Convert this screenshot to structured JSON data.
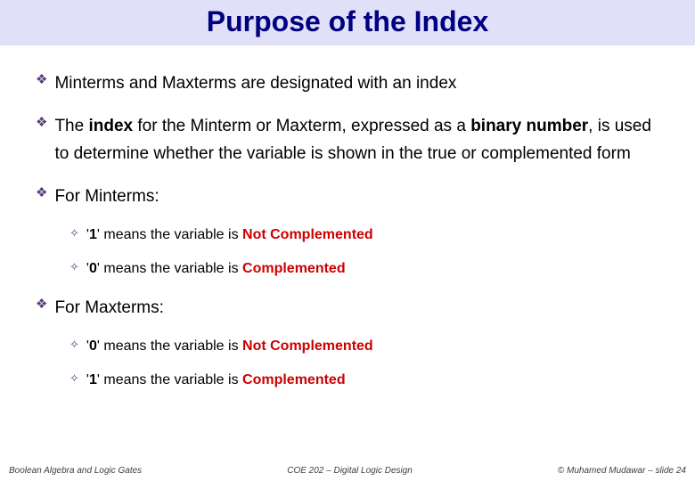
{
  "title": "Purpose of the Index",
  "bullets": {
    "b1": "Minterms and Maxterms are designated with an index",
    "b2_pre": "The ",
    "b2_index": "index",
    "b2_mid": " for the Minterm or Maxterm, expressed as a ",
    "b2_binary": "binary number",
    "b2_post": ", is used to determine whether the variable is shown in the true or complemented form",
    "b3": "For Minterms:",
    "b3s1_pre": "'",
    "b3s1_val": "1",
    "b3s1_post": "' means the variable is ",
    "b3s1_em": "Not Complemented",
    "b3s2_pre": "'",
    "b3s2_val": "0",
    "b3s2_post": "' means  the variable is ",
    "b3s2_em": "Complemented",
    "b4": "For Maxterms:",
    "b4s1_pre": "'",
    "b4s1_val": "0",
    "b4s1_post": "' means  the variable is ",
    "b4s1_em": "Not Complemented",
    "b4s2_pre": "'",
    "b4s2_val": "1",
    "b4s2_post": "' means the variable is ",
    "b4s2_em": "Complemented"
  },
  "footer": {
    "left": "Boolean Algebra and Logic Gates",
    "center": "COE 202 – Digital Logic Design",
    "right": "© Muhamed Mudawar – slide 24"
  },
  "style": {
    "title_bg": "#e0e0f8",
    "title_color": "#000080",
    "bullet_icon_color": "#5a3a7a",
    "emphasis_color": "#cc0000"
  }
}
